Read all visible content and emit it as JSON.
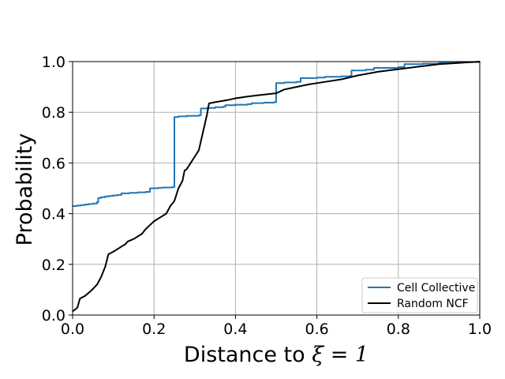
{
  "chart_data": {
    "type": "line",
    "title": "",
    "xlabel": "Distance to",
    "xlabel_math": "ξ = 1",
    "ylabel": "Probability",
    "xlim": [
      0.0,
      1.0
    ],
    "ylim": [
      0.0,
      1.0
    ],
    "xticks": [
      "0.0",
      "0.2",
      "0.4",
      "0.6",
      "0.8",
      "1.0"
    ],
    "yticks": [
      "0.0",
      "0.2",
      "0.4",
      "0.6",
      "0.8",
      "1.0"
    ],
    "grid": true,
    "legend_position": "lower-right",
    "series": [
      {
        "name": "Cell Collective",
        "color": "#1f77b4",
        "style": "step",
        "points": [
          [
            0.0,
            0.43
          ],
          [
            0.01,
            0.432
          ],
          [
            0.02,
            0.434
          ],
          [
            0.03,
            0.436
          ],
          [
            0.04,
            0.438
          ],
          [
            0.05,
            0.44
          ],
          [
            0.06,
            0.445
          ],
          [
            0.063,
            0.462
          ],
          [
            0.07,
            0.465
          ],
          [
            0.08,
            0.468
          ],
          [
            0.09,
            0.47
          ],
          [
            0.1,
            0.472
          ],
          [
            0.11,
            0.474
          ],
          [
            0.12,
            0.48
          ],
          [
            0.14,
            0.482
          ],
          [
            0.16,
            0.484
          ],
          [
            0.18,
            0.486
          ],
          [
            0.19,
            0.5
          ],
          [
            0.21,
            0.502
          ],
          [
            0.22,
            0.503
          ],
          [
            0.245,
            0.505
          ],
          [
            0.25,
            0.781
          ],
          [
            0.26,
            0.784
          ],
          [
            0.28,
            0.786
          ],
          [
            0.31,
            0.788
          ],
          [
            0.315,
            0.815
          ],
          [
            0.33,
            0.817
          ],
          [
            0.35,
            0.82
          ],
          [
            0.37,
            0.822
          ],
          [
            0.375,
            0.828
          ],
          [
            0.4,
            0.83
          ],
          [
            0.43,
            0.832
          ],
          [
            0.44,
            0.836
          ],
          [
            0.47,
            0.838
          ],
          [
            0.495,
            0.84
          ],
          [
            0.5,
            0.915
          ],
          [
            0.52,
            0.918
          ],
          [
            0.55,
            0.92
          ],
          [
            0.56,
            0.935
          ],
          [
            0.6,
            0.937
          ],
          [
            0.62,
            0.94
          ],
          [
            0.66,
            0.942
          ],
          [
            0.68,
            0.943
          ],
          [
            0.685,
            0.965
          ],
          [
            0.72,
            0.968
          ],
          [
            0.74,
            0.975
          ],
          [
            0.8,
            0.978
          ],
          [
            0.815,
            0.99
          ],
          [
            0.86,
            0.992
          ],
          [
            0.9,
            0.995
          ],
          [
            0.95,
            0.998
          ],
          [
            1.0,
            1.0
          ]
        ]
      },
      {
        "name": "Random NCF",
        "color": "#000000",
        "style": "line",
        "points": [
          [
            0.0,
            0.015
          ],
          [
            0.005,
            0.02
          ],
          [
            0.012,
            0.03
          ],
          [
            0.018,
            0.065
          ],
          [
            0.03,
            0.075
          ],
          [
            0.045,
            0.095
          ],
          [
            0.06,
            0.12
          ],
          [
            0.07,
            0.15
          ],
          [
            0.08,
            0.19
          ],
          [
            0.088,
            0.24
          ],
          [
            0.1,
            0.25
          ],
          [
            0.11,
            0.26
          ],
          [
            0.12,
            0.27
          ],
          [
            0.13,
            0.28
          ],
          [
            0.135,
            0.29
          ],
          [
            0.15,
            0.3
          ],
          [
            0.17,
            0.32
          ],
          [
            0.18,
            0.34
          ],
          [
            0.19,
            0.355
          ],
          [
            0.2,
            0.37
          ],
          [
            0.21,
            0.38
          ],
          [
            0.22,
            0.39
          ],
          [
            0.23,
            0.4
          ],
          [
            0.24,
            0.43
          ],
          [
            0.25,
            0.45
          ],
          [
            0.26,
            0.5
          ],
          [
            0.27,
            0.53
          ],
          [
            0.275,
            0.57
          ],
          [
            0.28,
            0.575
          ],
          [
            0.29,
            0.6
          ],
          [
            0.3,
            0.625
          ],
          [
            0.31,
            0.65
          ],
          [
            0.32,
            0.72
          ],
          [
            0.33,
            0.79
          ],
          [
            0.335,
            0.835
          ],
          [
            0.35,
            0.84
          ],
          [
            0.38,
            0.848
          ],
          [
            0.4,
            0.855
          ],
          [
            0.43,
            0.862
          ],
          [
            0.46,
            0.868
          ],
          [
            0.5,
            0.875
          ],
          [
            0.52,
            0.89
          ],
          [
            0.55,
            0.9
          ],
          [
            0.58,
            0.91
          ],
          [
            0.62,
            0.92
          ],
          [
            0.66,
            0.93
          ],
          [
            0.7,
            0.945
          ],
          [
            0.75,
            0.96
          ],
          [
            0.8,
            0.97
          ],
          [
            0.85,
            0.98
          ],
          [
            0.9,
            0.99
          ],
          [
            0.95,
            0.995
          ],
          [
            1.0,
            1.0
          ]
        ]
      }
    ]
  }
}
